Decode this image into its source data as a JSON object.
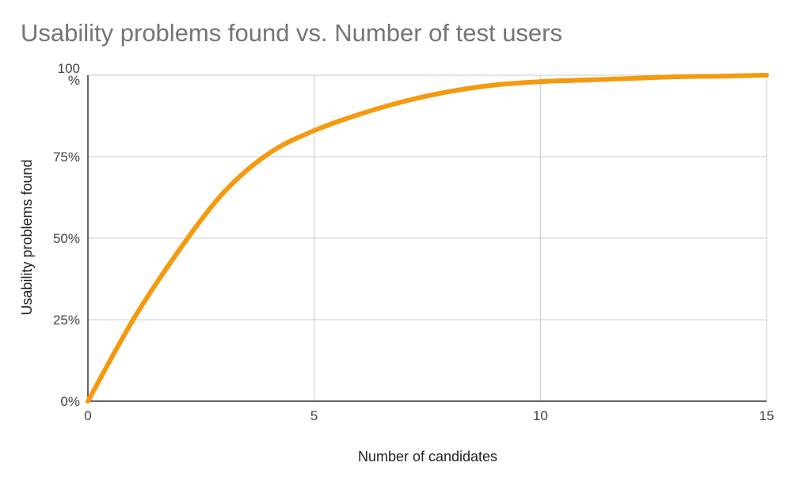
{
  "chart_data": {
    "type": "line",
    "title": "Usability problems found vs. Number of test users",
    "xlabel": "Number of candidates",
    "ylabel": "Usability problems found",
    "xlim": [
      0,
      15
    ],
    "ylim": [
      0,
      100
    ],
    "x_ticks": [
      0,
      5,
      10,
      15
    ],
    "x_tick_labels": [
      "0",
      "5",
      "10",
      "15"
    ],
    "y_ticks": [
      0,
      25,
      50,
      75,
      100
    ],
    "y_tick_labels": [
      "0%",
      "25%",
      "50%",
      "75%",
      "100\n%"
    ],
    "grid": true,
    "legend": "none",
    "series": [
      {
        "color": "#f49a0f",
        "x": [
          0,
          1,
          2,
          3,
          4,
          5,
          6,
          7,
          8,
          9,
          10,
          11,
          12,
          13,
          14,
          15
        ],
        "y": [
          0,
          25,
          46,
          64,
          76,
          83,
          88,
          92,
          95,
          97,
          98,
          98.5,
          99,
          99.5,
          99.7,
          100
        ]
      }
    ]
  }
}
